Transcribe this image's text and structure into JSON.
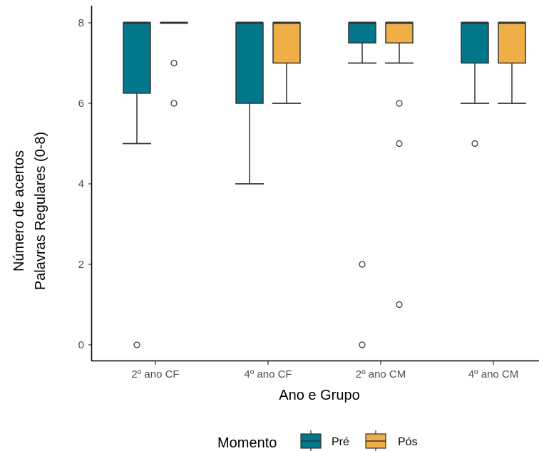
{
  "chart_data": {
    "type": "boxplot",
    "xlabel": "Ano e Grupo",
    "ylabel_lines": [
      "Número de acertos",
      "Palavras Regulares (0-8)"
    ],
    "categories": [
      "2º ano CF",
      "4º ano CF",
      "2º ano CM",
      "4º ano CM"
    ],
    "ylim": [
      0,
      8
    ],
    "yticks": [
      0,
      2,
      4,
      6,
      8
    ],
    "legend": {
      "title": "Momento",
      "position": "bottom"
    },
    "series": [
      {
        "name": "Pré",
        "color": "#00778a",
        "boxes": [
          {
            "whisker_low": 5,
            "q1": 6.25,
            "median": 8,
            "q3": 8,
            "whisker_high": 8,
            "outliers": [
              0
            ]
          },
          {
            "whisker_low": 4,
            "q1": 6,
            "median": 8,
            "q3": 8,
            "whisker_high": 8,
            "outliers": []
          },
          {
            "whisker_low": 7,
            "q1": 7.5,
            "median": 8,
            "q3": 8,
            "whisker_high": 8,
            "outliers": [
              2,
              0
            ]
          },
          {
            "whisker_low": 6,
            "q1": 7,
            "median": 8,
            "q3": 8,
            "whisker_high": 8,
            "outliers": [
              5
            ]
          }
        ]
      },
      {
        "name": "Pós",
        "color": "#f0ae47",
        "boxes": [
          {
            "whisker_low": 8,
            "q1": 8,
            "median": 8,
            "q3": 8,
            "whisker_high": 8,
            "outliers": [
              7,
              6
            ]
          },
          {
            "whisker_low": 6,
            "q1": 7,
            "median": 8,
            "q3": 8,
            "whisker_high": 8,
            "outliers": []
          },
          {
            "whisker_low": 7,
            "q1": 7.5,
            "median": 8,
            "q3": 8,
            "whisker_high": 8,
            "outliers": [
              6,
              5,
              1
            ]
          },
          {
            "whisker_low": 6,
            "q1": 7,
            "median": 8,
            "q3": 8,
            "whisker_high": 8,
            "outliers": []
          }
        ]
      }
    ]
  }
}
